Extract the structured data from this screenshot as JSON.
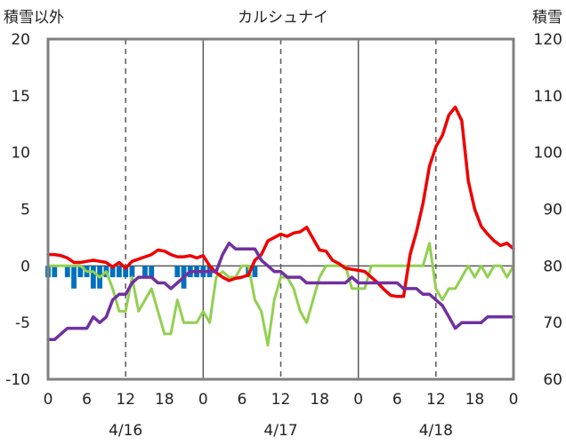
{
  "chart_data": {
    "type": "line",
    "title": "カルシュナイ",
    "ylabel_left": "積雪以外",
    "ylabel_right": "積雪",
    "ylim_left": [
      -10,
      20
    ],
    "ylim_right": [
      60,
      120
    ],
    "yticks_left": [
      20,
      15,
      10,
      5,
      0,
      -5,
      -10
    ],
    "yticks_right": [
      120,
      110,
      100,
      90,
      80,
      70,
      60
    ],
    "xlim": [
      0,
      72
    ],
    "xticks": [
      {
        "x": 0,
        "label": "0"
      },
      {
        "x": 6,
        "label": "6"
      },
      {
        "x": 12,
        "label": "12"
      },
      {
        "x": 18,
        "label": "18"
      },
      {
        "x": 24,
        "label": "0"
      },
      {
        "x": 30,
        "label": "6"
      },
      {
        "x": 36,
        "label": "12"
      },
      {
        "x": 42,
        "label": "18"
      },
      {
        "x": 48,
        "label": "0"
      },
      {
        "x": 54,
        "label": "6"
      },
      {
        "x": 60,
        "label": "12"
      },
      {
        "x": 66,
        "label": "18"
      },
      {
        "x": 72,
        "label": "0"
      }
    ],
    "date_labels": [
      {
        "x": 12,
        "label": "4/16"
      },
      {
        "x": 36,
        "label": "4/17"
      },
      {
        "x": 60,
        "label": "4/18"
      }
    ],
    "day_lines": [
      24,
      48
    ],
    "dashed_lines": [
      12,
      36,
      60
    ],
    "colors": {
      "red": "#ee0000",
      "green": "#92d050",
      "purple": "#7030a0",
      "blue": "#0070c0",
      "frame": "#7f7f7f",
      "grid": "#595959"
    },
    "series": [
      {
        "key": "red",
        "axis": "left",
        "values": [
          1,
          1,
          0.9,
          0.7,
          0.3,
          0.3,
          0.4,
          0.5,
          0.4,
          0.3,
          -0.1,
          0.3,
          -0.2,
          0.4,
          0.6,
          0.8,
          1,
          1.4,
          1.3,
          1,
          0.8,
          0.8,
          0.9,
          0.7,
          0.9,
          0,
          -0.6,
          -1,
          -1.3,
          -1.1,
          -1,
          -0.8,
          0.5,
          1,
          2.2,
          2.5,
          2.8,
          2.6,
          2.9,
          3,
          3.4,
          2.4,
          1.4,
          1.3,
          0.5,
          0.2,
          -0.2,
          -0.3,
          -0.4,
          -0.5,
          -1,
          -1.5,
          -2.1,
          -2.6,
          -2.7,
          -2.7,
          1,
          3,
          5.5,
          8.8,
          10.5,
          11.5,
          13.3,
          14,
          12.8,
          7.5,
          5,
          3.5,
          2.8,
          2.2,
          1.8,
          2,
          1.5
        ]
      },
      {
        "key": "green",
        "axis": "left",
        "values": [
          0,
          0,
          0,
          0,
          0,
          0,
          -0.5,
          -0.5,
          -1,
          -0.5,
          -2,
          -4,
          -4,
          -1,
          -4,
          -3,
          -2,
          -4,
          -6,
          -6,
          -3,
          -5,
          -5,
          -5,
          -4,
          -5,
          -1,
          -0.5,
          -1,
          -1,
          0,
          0,
          -3,
          -4,
          -7,
          -3,
          -1,
          -1,
          -2,
          -4,
          -5,
          -3,
          -1,
          0,
          0,
          0,
          0,
          -2,
          -2,
          -2,
          0,
          0,
          0,
          0,
          0,
          0,
          0,
          0,
          0,
          2,
          -2,
          -3,
          -2,
          -2,
          -1,
          0,
          -1,
          0,
          -1,
          0,
          0,
          -1,
          0
        ]
      },
      {
        "key": "purple",
        "axis": "right",
        "values": [
          67,
          67,
          68,
          69,
          69,
          69,
          69,
          71,
          70,
          71,
          74,
          75,
          75,
          77,
          78,
          78,
          78,
          77,
          77,
          76,
          77,
          78,
          79,
          79,
          79,
          79,
          79,
          82,
          84,
          83,
          83,
          83,
          83,
          81,
          80,
          79,
          79,
          78,
          78,
          78,
          77,
          77,
          77,
          77,
          77,
          77,
          77,
          78,
          77,
          77,
          77,
          77,
          77,
          77,
          77,
          76,
          76,
          76,
          75,
          75,
          74,
          73,
          71,
          69,
          70,
          70,
          70,
          70,
          71,
          71,
          71,
          71,
          71
        ]
      }
    ],
    "bars": {
      "key": "blue",
      "axis": "left",
      "values": [
        -1,
        -1,
        0,
        -1,
        -2,
        -1,
        -1,
        -2,
        -2,
        -1,
        -1,
        -1,
        -1,
        -1,
        0,
        -1,
        -1,
        0,
        0,
        0,
        -1,
        -2,
        -1,
        -1,
        -1,
        -1,
        0,
        0,
        0,
        0,
        0,
        -1,
        -1,
        0,
        0,
        0,
        0,
        0,
        0,
        0,
        0,
        0,
        0,
        0,
        0,
        0,
        0,
        0,
        0,
        0,
        0,
        0,
        0,
        0,
        0,
        0,
        0,
        0,
        0,
        0,
        0,
        0,
        0,
        0,
        0,
        0,
        0,
        0,
        0,
        0,
        0,
        0,
        0
      ]
    }
  }
}
